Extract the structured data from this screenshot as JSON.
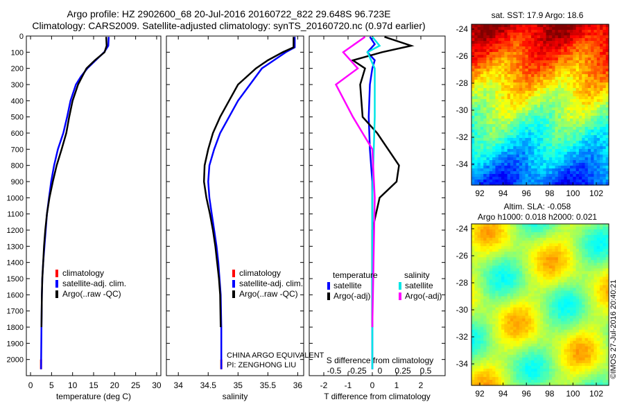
{
  "header": {
    "line1": "Argo profile: HZ 2902600_68 20-Jul-2016 20160722_822 29.648S 96.723E",
    "line2": "Climatology: CARS2009. Satellite-adjusted climatology: synTS_20160720.nc (0.97d earlier)"
  },
  "colors": {
    "climatology": "#ff0000",
    "satellite": "#0000ff",
    "argo": "#000000",
    "sat_cyan": "#00e5e5",
    "argo_magenta": "#ff00ff"
  },
  "chart_data": [
    {
      "type": "line",
      "xlabel": "temperature (deg C)",
      "ylabel": "",
      "xlim": [
        -1,
        31
      ],
      "ylim": [
        2100,
        0
      ],
      "xticks": [
        "0",
        "5",
        "10",
        "15",
        "20",
        "25",
        "30"
      ],
      "yticks": [
        "0",
        "100",
        "200",
        "300",
        "400",
        "500",
        "600",
        "700",
        "800",
        "900",
        "1000",
        "1100",
        "1200",
        "1300",
        "1400",
        "1500",
        "1600",
        "1700",
        "1800",
        "1900",
        "2000"
      ],
      "legend": [
        "climatology",
        "satellite-adj. clim.",
        "Argo(..raw -QC)"
      ],
      "series": [
        {
          "name": "climatology",
          "x": [
            2.5,
            2.5
          ],
          "y": [
            2000,
            2060
          ]
        },
        {
          "name": "satellite-adj. clim.",
          "x": [
            18.6,
            18.5,
            17.5,
            15.5,
            13.5,
            12.0,
            10.8,
            9.5,
            8.7,
            7.8,
            6.5,
            5.6,
            4.9,
            4.4,
            3.9,
            3.6,
            3.3,
            3.0,
            2.8,
            2.7,
            2.6,
            2.5
          ],
          "y": [
            5,
            60,
            100,
            150,
            200,
            250,
            300,
            400,
            500,
            600,
            700,
            800,
            900,
            1000,
            1100,
            1200,
            1300,
            1400,
            1500,
            1600,
            1800,
            2060
          ]
        },
        {
          "name": "Argo(..raw -QC)",
          "x": [
            18.0,
            18.1,
            17.6,
            15.3,
            13.3,
            12.3,
            11.3,
            10.0,
            9.2,
            8.5,
            7.4,
            6.2,
            5.3,
            4.5,
            3.9,
            3.5,
            3.2,
            3.0,
            2.8,
            2.7,
            2.6
          ],
          "y": [
            5,
            60,
            100,
            150,
            200,
            250,
            300,
            400,
            500,
            600,
            700,
            800,
            900,
            1000,
            1100,
            1200,
            1300,
            1400,
            1500,
            1600,
            1800
          ]
        }
      ]
    },
    {
      "type": "line",
      "xlabel": "salinity",
      "xlim": [
        33.8,
        36.1
      ],
      "ylim": [
        2100,
        0
      ],
      "xticks": [
        "34",
        "34.5",
        "35",
        "35.5",
        "36"
      ],
      "legend": [
        "climatology",
        "satellite-adj. clim.",
        "Argo(..raw -QC)"
      ],
      "annotation": [
        "CHINA ARGO EQUIVALENT",
        "PI: ZENGHONG LIU"
      ],
      "series": [
        {
          "name": "climatology",
          "x": [
            34.72,
            34.72
          ],
          "y": [
            2000,
            2060
          ]
        },
        {
          "name": "satellite-adj. clim.",
          "x": [
            35.95,
            35.95,
            35.8,
            35.6,
            35.4,
            35.2,
            35.0,
            34.85,
            34.7,
            34.6,
            34.52,
            34.5,
            34.52,
            34.56,
            34.6,
            34.64,
            34.67,
            34.69,
            34.71,
            34.72,
            34.72
          ],
          "y": [
            5,
            70,
            100,
            150,
            200,
            300,
            400,
            500,
            600,
            700,
            800,
            900,
            1000,
            1100,
            1200,
            1300,
            1400,
            1500,
            1600,
            1800,
            2060
          ]
        },
        {
          "name": "Argo(..raw -QC)",
          "x": [
            35.93,
            35.93,
            35.75,
            35.5,
            35.3,
            35.0,
            34.85,
            34.7,
            34.58,
            34.5,
            34.44,
            34.43,
            34.47,
            34.53,
            34.58,
            34.62,
            34.65,
            34.68,
            34.7,
            34.71
          ],
          "y": [
            5,
            70,
            100,
            150,
            200,
            300,
            400,
            500,
            600,
            700,
            800,
            900,
            1000,
            1100,
            1200,
            1300,
            1400,
            1500,
            1600,
            1800
          ]
        }
      ]
    },
    {
      "type": "line",
      "xlabel": "T difference from climatology",
      "xlabel2": "S difference from climatology",
      "xlim": [
        -2.6,
        3.0
      ],
      "ylim": [
        2100,
        0
      ],
      "xticks": [
        "-2",
        "-1",
        "0",
        "1",
        "2"
      ],
      "xticks_s": [
        "-0.5",
        "-0.25",
        "0",
        "0.25",
        "0.5"
      ],
      "legend_t_title": "temperature",
      "legend_s_title": "salinity",
      "legend": [
        "satellite",
        "Argo(-adj)",
        "satellite",
        "Argo(-adj)"
      ],
      "series": [
        {
          "name": "satellite",
          "x": [
            -0.1,
            0.1,
            -0.2,
            0.1,
            0.0,
            -0.1,
            -0.15,
            -0.1,
            0.0,
            0.0,
            0.0,
            0.0
          ],
          "y": [
            5,
            50,
            100,
            150,
            200,
            300,
            500,
            700,
            900,
            1200,
            1600,
            2060
          ]
        },
        {
          "name": "Argo(-adj)",
          "x": [
            0.5,
            1.6,
            0.4,
            -0.8,
            -0.3,
            -0.5,
            -0.4,
            0.2,
            1.1,
            1.0,
            0.3,
            0.0,
            0.0
          ],
          "y": [
            5,
            60,
            100,
            150,
            200,
            300,
            500,
            600,
            800,
            900,
            1000,
            1200,
            1800
          ]
        },
        {
          "name": "satellite",
          "x": [
            0.0,
            0.3,
            -0.2,
            0.1,
            0.1,
            0.0,
            0.0
          ],
          "y": [
            5,
            60,
            100,
            200,
            500,
            1000,
            2060
          ]
        },
        {
          "name": "Argo(-adj)",
          "x": [
            -0.3,
            -1.2,
            -0.6,
            -1.5,
            -0.8,
            -0.4,
            0.0,
            0.1,
            0.0
          ],
          "y": [
            5,
            100,
            200,
            300,
            500,
            600,
            700,
            1000,
            1800
          ]
        }
      ]
    },
    {
      "type": "heatmap",
      "title": "sat. SST: 17.9  Argo: 18.6",
      "xticks": [
        "92",
        "94",
        "96",
        "98",
        "100",
        "102"
      ],
      "yticks": [
        "-24",
        "-26",
        "-28",
        "-30",
        "-32",
        "-34"
      ],
      "colormap": "jet"
    },
    {
      "type": "heatmap",
      "title": "Altim. SLA: -0.058",
      "subtitle": "Argo h1000: 0.018  h2000: 0.021",
      "xticks": [
        "92",
        "94",
        "96",
        "98",
        "100",
        "102"
      ],
      "yticks": [
        "-24",
        "-26",
        "-28",
        "-30",
        "-32",
        "-34"
      ],
      "colormap": "jet"
    }
  ],
  "footer": {
    "stamp": "©IMOS 27-Jul-2016 20:40:21"
  }
}
